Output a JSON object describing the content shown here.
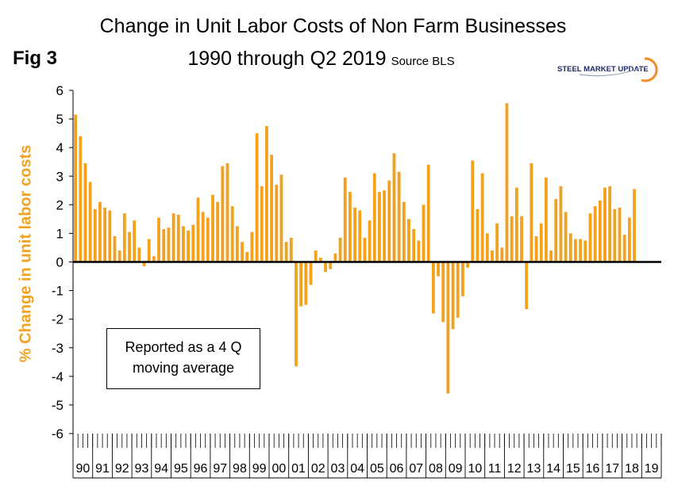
{
  "title_line1": "Change in Unit Labor Costs of Non Farm Businesses",
  "title_line2": "1990 through Q2 2019",
  "source": "Source BLS",
  "fig_label": "Fig 3",
  "logo": {
    "text": "STEEL MARKET UPDATE",
    "brand_color": "#1f2a6b",
    "accent_color": "#f28c28"
  },
  "note": {
    "line1": "Reported as a 4 Q",
    "line2": "moving average"
  },
  "chart_data": {
    "type": "bar",
    "title": "Change in Unit Labor Costs of Non Farm Businesses 1990 through Q2 2019",
    "ylabel": "% Change in unit labor costs",
    "xlabel": "",
    "ylim": [
      -6,
      6
    ],
    "yticks": [
      6,
      5,
      4,
      3,
      2,
      1,
      0,
      -1,
      -2,
      -3,
      -4,
      -5,
      -6
    ],
    "bar_color": "#f2a21f",
    "axis_color": "#000000",
    "grid": false,
    "year_labels": [
      "90",
      "91",
      "92",
      "93",
      "94",
      "95",
      "96",
      "97",
      "98",
      "99",
      "00",
      "01",
      "02",
      "03",
      "04",
      "05",
      "06",
      "07",
      "08",
      "09",
      "10",
      "11",
      "12",
      "13",
      "14",
      "15",
      "16",
      "17",
      "18",
      "19"
    ],
    "values": [
      5.15,
      4.4,
      3.45,
      2.8,
      1.85,
      2.1,
      1.9,
      1.8,
      0.9,
      0.4,
      1.7,
      1.05,
      1.45,
      0.5,
      -0.15,
      0.8,
      0.2,
      1.55,
      1.15,
      1.2,
      1.7,
      1.65,
      1.25,
      1.1,
      1.3,
      2.25,
      1.75,
      1.55,
      2.35,
      2.1,
      3.35,
      3.45,
      1.95,
      1.25,
      0.7,
      0.35,
      1.05,
      4.5,
      2.65,
      4.75,
      3.75,
      2.7,
      3.05,
      0.7,
      0.85,
      -3.65,
      -1.55,
      -1.5,
      -0.8,
      0.4,
      0.15,
      -0.35,
      -0.25,
      0.3,
      0.85,
      2.95,
      2.45,
      1.9,
      1.8,
      0.85,
      1.45,
      3.1,
      2.45,
      2.5,
      2.85,
      3.8,
      3.15,
      2.1,
      1.5,
      1.15,
      0.75,
      2.0,
      3.4,
      -1.8,
      -0.5,
      -2.1,
      -4.6,
      -2.35,
      -1.95,
      -1.2,
      -0.2,
      3.55,
      1.85,
      3.1,
      1.0,
      0.4,
      1.35,
      0.5,
      5.55,
      1.6,
      2.6,
      1.6,
      -1.65,
      3.45,
      0.9,
      1.35,
      2.95,
      0.4,
      2.2,
      2.65,
      1.75,
      1.0,
      0.8,
      0.8,
      0.75,
      1.7,
      1.95,
      2.15,
      2.6,
      2.65,
      1.85,
      1.9,
      0.95,
      1.55,
      2.55
    ]
  }
}
